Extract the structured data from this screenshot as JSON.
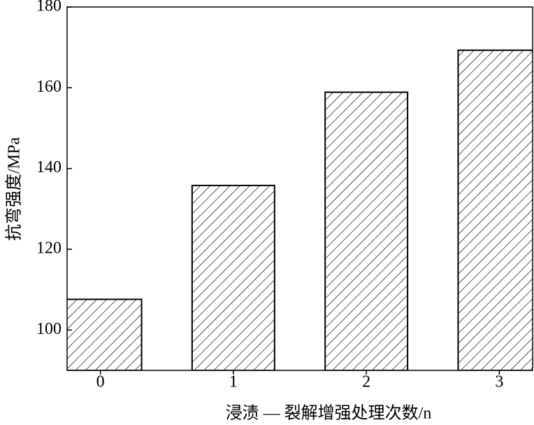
{
  "chart_data": {
    "type": "bar",
    "x": [
      0,
      1,
      2,
      3
    ],
    "values": [
      107.6,
      135.8,
      158.9,
      169.3
    ],
    "xlim": [
      -0.25,
      3.25
    ],
    "xticks": [
      0,
      1,
      2,
      3
    ],
    "ylim": [
      90,
      180
    ],
    "yticks": [
      100,
      120,
      140,
      160,
      180
    ],
    "bar_width": 0.62,
    "color": "#000000",
    "xlabel": "浸渍 — 裂解增强处理次数/n",
    "ylabel": "抗弯强度/MPa",
    "grid": false
  }
}
